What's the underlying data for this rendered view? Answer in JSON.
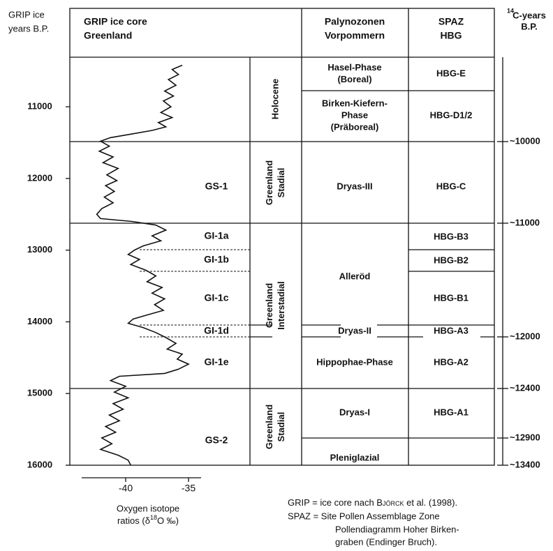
{
  "header": {
    "age_col": [
      "GRIP ice",
      "years B.P."
    ],
    "grip": [
      "GRIP ice core",
      "Greenland"
    ],
    "palyno": [
      "Palynozonen",
      "Vorpommern"
    ],
    "spaz": [
      "SPAZ",
      "HBG"
    ],
    "c14": {
      "sup": "14",
      "lines": [
        "C-years",
        "B.P."
      ]
    }
  },
  "chart_data": {
    "type": "line",
    "color": "#111111",
    "x": [
      10420,
      10480,
      10550,
      10620,
      10700,
      10780,
      10850,
      10920,
      11000,
      11080,
      11150,
      11220,
      11280,
      11330,
      11380,
      11430,
      11480,
      11550,
      11620,
      11700,
      11780,
      11860,
      11950,
      12030,
      12100,
      12180,
      12260,
      12340,
      12420,
      12500,
      12560,
      12600,
      12650,
      12720,
      12800,
      12870,
      12940,
      13000,
      13060,
      13130,
      13200,
      13280,
      13360,
      13440,
      13520,
      13600,
      13680,
      13760,
      13840,
      13900,
      13960,
      14020,
      14080,
      14150,
      14220,
      14300,
      14380,
      14450,
      14520,
      14590,
      14660,
      14720,
      14760,
      14820,
      14900,
      14980,
      15060,
      15140,
      15220,
      15300,
      15380,
      15460,
      15540,
      15620,
      15700,
      15780,
      15860,
      15930,
      16000
    ],
    "values": [
      -35.5,
      -36.3,
      -35.8,
      -36.6,
      -36.0,
      -36.9,
      -36.2,
      -37.0,
      -36.4,
      -37.2,
      -36.3,
      -37.4,
      -36.8,
      -37.9,
      -39.5,
      -41.2,
      -42.0,
      -41.3,
      -42.1,
      -41.0,
      -41.8,
      -40.6,
      -41.5,
      -40.7,
      -41.6,
      -40.9,
      -41.7,
      -41.0,
      -41.9,
      -42.3,
      -42.0,
      -39.5,
      -37.6,
      -36.8,
      -37.9,
      -37.2,
      -38.6,
      -39.3,
      -39.8,
      -38.9,
      -39.6,
      -38.4,
      -37.6,
      -38.3,
      -37.1,
      -37.9,
      -36.9,
      -37.7,
      -37.0,
      -38.2,
      -39.4,
      -39.8,
      -38.6,
      -37.6,
      -36.8,
      -36.0,
      -36.7,
      -35.5,
      -35.9,
      -35.0,
      -35.8,
      -36.9,
      -40.5,
      -41.2,
      -40.0,
      -40.9,
      -39.8,
      -41.0,
      -40.2,
      -41.3,
      -40.5,
      -41.6,
      -40.8,
      -41.9,
      -41.1,
      -42.0,
      -40.6,
      -39.8,
      -39.6
    ],
    "xlim": [
      10400,
      16000
    ],
    "xticks": [
      11000,
      12000,
      13000,
      14000,
      15000,
      16000
    ],
    "ylim": [
      -43.5,
      -34
    ],
    "yticks": [
      -40,
      -35
    ],
    "ylabel": {
      "line1": "Oxygen isotope",
      "pre": "ratios (δ",
      "sup": "18",
      "post": "O ‰)"
    }
  },
  "zones": [
    [
      "Holocene"
    ],
    [
      "Greenland",
      "Stadial"
    ],
    [
      "Greenland",
      "Interstadial"
    ],
    [
      "Greenland",
      "Stadial"
    ]
  ],
  "events": [
    "GS-1",
    "GI-1a",
    "GI-1b",
    "GI-1c",
    "GI-1d",
    "GI-1e",
    "GS-2"
  ],
  "palyno": [
    [
      "Hasel-Phase",
      "(Boreal)"
    ],
    [
      "Birken-Kiefern-",
      "Phase",
      "(Präboreal)"
    ],
    [
      "Dryas-III"
    ],
    [
      "Alleröd"
    ],
    [
      "Dryas-II"
    ],
    [
      "Hippophae-Phase"
    ],
    [
      "Dryas-I"
    ],
    [
      "Pleniglazial"
    ]
  ],
  "spaz": [
    "HBG-E",
    "HBG-D1/2",
    "HBG-C",
    "HBG-B3",
    "HBG-B2",
    "HBG-B1",
    "HBG-A3",
    "HBG-A2",
    "HBG-A1"
  ],
  "c14_ticks": [
    "~10000",
    "~11000",
    "~12000",
    "~12400",
    "~12900",
    "~13400"
  ],
  "note": {
    "l1": [
      "GRIP = ice core nach ",
      "Björck",
      " et al. (1998)."
    ],
    "l2": "SPAZ = Site Pollen Assemblage Zone",
    "l3": [
      "Pollendiagramm Hoher Birken-",
      "graben (Endinger Bruch)."
    ]
  }
}
